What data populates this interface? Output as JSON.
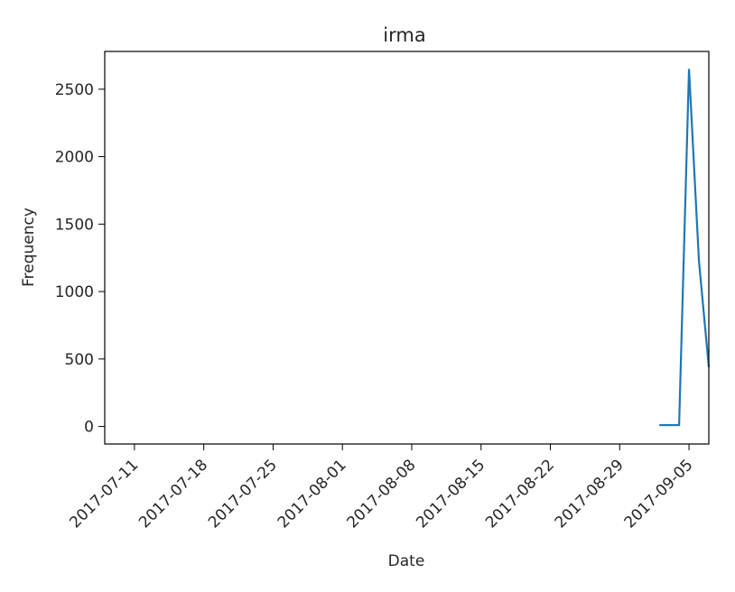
{
  "chart_data": {
    "type": "line",
    "title": "irma",
    "xlabel": "Date",
    "ylabel": "Frequency",
    "grid": false,
    "xlim": [
      "2017-07-08",
      "2017-09-07"
    ],
    "ylim": [
      -130,
      2780
    ],
    "x_ticks": [
      "2017-07-11",
      "2017-07-18",
      "2017-07-25",
      "2017-08-01",
      "2017-08-08",
      "2017-08-15",
      "2017-08-22",
      "2017-08-29",
      "2017-09-05"
    ],
    "y_ticks": [
      0,
      500,
      1000,
      1500,
      2000,
      2500
    ],
    "series": [
      {
        "color": "#1f77b4",
        "x": [
          "2017-09-02",
          "2017-09-03",
          "2017-09-04",
          "2017-09-05",
          "2017-09-06",
          "2017-09-07"
        ],
        "y": [
          10,
          10,
          10,
          2650,
          1230,
          440
        ]
      }
    ]
  }
}
